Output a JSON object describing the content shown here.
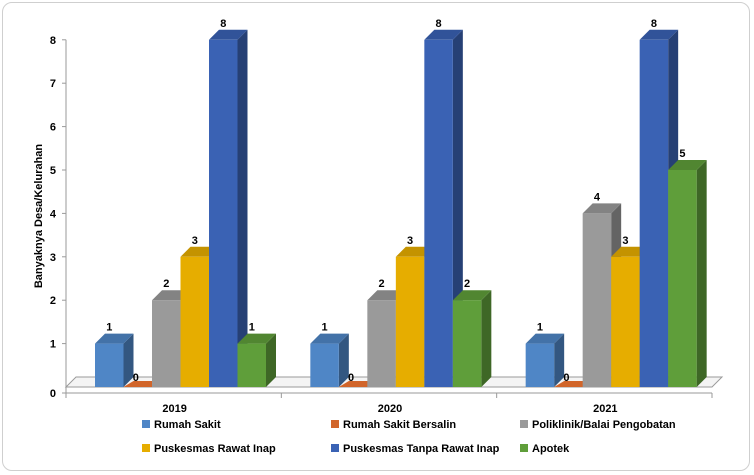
{
  "chart_data": {
    "type": "bar",
    "xlabel": "",
    "ylabel": "Banyaknya Desa/Kelurahan",
    "ylim": [
      0,
      8
    ],
    "yticks": [
      "0",
      "1",
      "2",
      "3",
      "4",
      "5",
      "6",
      "7",
      "8"
    ],
    "categories": [
      "2019",
      "2020",
      "2021"
    ],
    "series": [
      {
        "name": "Rumah Sakit",
        "color": "#4f86c6",
        "values": [
          1,
          1,
          1
        ]
      },
      {
        "name": "Rumah Sakit Bersalin",
        "color": "#d1652a",
        "values": [
          0,
          0,
          0
        ]
      },
      {
        "name": "Poliklinik/Balai Pengobatan",
        "color": "#9a9a9a",
        "values": [
          2,
          2,
          4
        ]
      },
      {
        "name": "Puskesmas Rawat Inap",
        "color": "#e6ad00",
        "values": [
          3,
          3,
          3
        ]
      },
      {
        "name": "Puskesmas Tanpa Rawat Inap",
        "color": "#3a62b4",
        "values": [
          8,
          8,
          8
        ]
      },
      {
        "name": "Apotek",
        "color": "#5f9e3a",
        "values": [
          1,
          2,
          5
        ]
      }
    ],
    "style": "3d-clustered-column",
    "legend_position": "bottom",
    "grid": false
  }
}
